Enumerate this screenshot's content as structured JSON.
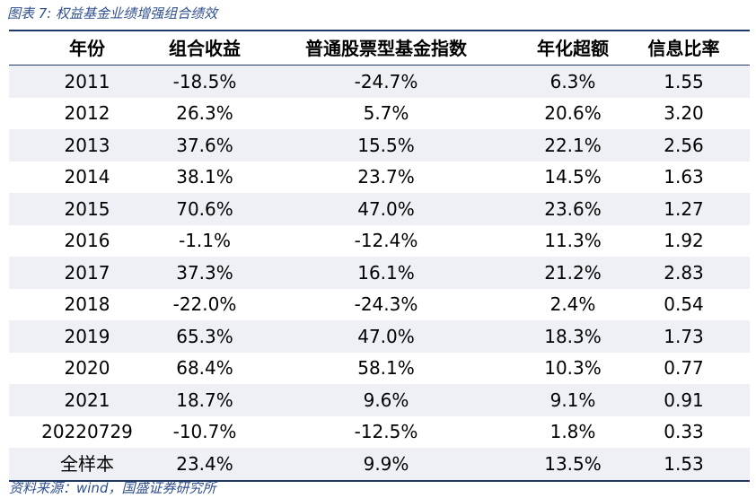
{
  "caption": "图表 7:  权益基金业绩增强组合绩效",
  "table": {
    "headers": [
      "年份",
      "组合收益",
      "普通股票型基金指数",
      "年化超额",
      "信息比率"
    ],
    "rows": [
      [
        "2011",
        "-18.5%",
        "-24.7%",
        "6.3%",
        "1.55"
      ],
      [
        "2012",
        "26.3%",
        "5.7%",
        "20.6%",
        "3.20"
      ],
      [
        "2013",
        "37.6%",
        "15.5%",
        "22.1%",
        "2.56"
      ],
      [
        "2014",
        "38.1%",
        "23.7%",
        "14.5%",
        "1.63"
      ],
      [
        "2015",
        "70.6%",
        "47.0%",
        "23.6%",
        "1.27"
      ],
      [
        "2016",
        "-1.1%",
        "-12.4%",
        "11.3%",
        "1.92"
      ],
      [
        "2017",
        "37.3%",
        "16.1%",
        "21.2%",
        "2.83"
      ],
      [
        "2018",
        "-22.0%",
        "-24.3%",
        "2.4%",
        "0.54"
      ],
      [
        "2019",
        "65.3%",
        "47.0%",
        "18.3%",
        "1.73"
      ],
      [
        "2020",
        "68.4%",
        "58.1%",
        "10.3%",
        "0.77"
      ],
      [
        "2021",
        "18.7%",
        "9.6%",
        "9.1%",
        "0.91"
      ],
      [
        "20220729",
        "-10.7%",
        "-12.5%",
        "1.8%",
        "0.33"
      ],
      [
        "全样本",
        "23.4%",
        "9.9%",
        "13.5%",
        "1.53"
      ]
    ]
  },
  "source": "资料来源：wind，国盛证券研究所",
  "colors": {
    "rule": "#1f3864",
    "shaded_row": "#eef0f5",
    "caption_text": "#2f4f8f"
  }
}
